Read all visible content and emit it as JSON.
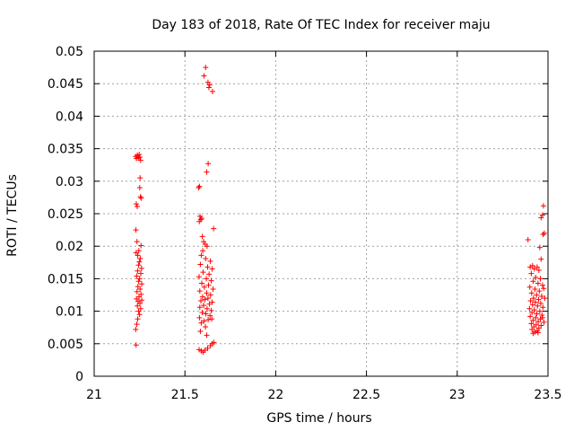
{
  "chart_data": {
    "type": "scatter",
    "title": "Day 183 of 2018, Rate Of TEC Index for receiver maju",
    "xlabel": "GPS time / hours",
    "ylabel": "ROTI / TECUs",
    "xlim": [
      21,
      23.5
    ],
    "ylim": [
      0,
      0.05
    ],
    "xticks": [
      {
        "value": 21,
        "label": "21"
      },
      {
        "value": 21.5,
        "label": "21.5"
      },
      {
        "value": 22,
        "label": "22"
      },
      {
        "value": 22.5,
        "label": "22.5"
      },
      {
        "value": 23,
        "label": "23"
      },
      {
        "value": 23.5,
        "label": "23.5"
      }
    ],
    "yticks": [
      {
        "value": 0,
        "label": "0"
      },
      {
        "value": 0.005,
        "label": "0.005"
      },
      {
        "value": 0.01,
        "label": "0.01"
      },
      {
        "value": 0.015,
        "label": "0.015"
      },
      {
        "value": 0.02,
        "label": "0.02"
      },
      {
        "value": 0.025,
        "label": "0.025"
      },
      {
        "value": 0.03,
        "label": "0.03"
      },
      {
        "value": 0.035,
        "label": "0.035"
      },
      {
        "value": 0.04,
        "label": "0.04"
      },
      {
        "value": 0.045,
        "label": "0.045"
      },
      {
        "value": 0.05,
        "label": "0.05"
      }
    ],
    "grid": true,
    "marker": "+",
    "series": [
      {
        "name": "ROTI",
        "color": "#ff0000",
        "points": [
          [
            21.228,
            0.0338
          ],
          [
            21.233,
            0.0335
          ],
          [
            21.238,
            0.034
          ],
          [
            21.243,
            0.0336
          ],
          [
            21.248,
            0.0341
          ],
          [
            21.252,
            0.0337
          ],
          [
            21.256,
            0.0332
          ],
          [
            21.253,
            0.0305
          ],
          [
            21.251,
            0.029
          ],
          [
            21.255,
            0.0276
          ],
          [
            21.259,
            0.0274
          ],
          [
            21.232,
            0.0265
          ],
          [
            21.237,
            0.0261
          ],
          [
            21.23,
            0.0225
          ],
          [
            21.236,
            0.0207
          ],
          [
            21.258,
            0.0201
          ],
          [
            21.246,
            0.0193
          ],
          [
            21.231,
            0.019
          ],
          [
            21.24,
            0.0186
          ],
          [
            21.254,
            0.0181
          ],
          [
            21.249,
            0.0176
          ],
          [
            21.244,
            0.0171
          ],
          [
            21.261,
            0.0166
          ],
          [
            21.239,
            0.0162
          ],
          [
            21.257,
            0.0158
          ],
          [
            21.234,
            0.0154
          ],
          [
            21.25,
            0.015
          ],
          [
            21.245,
            0.0146
          ],
          [
            21.262,
            0.0142
          ],
          [
            21.241,
            0.0138
          ],
          [
            21.253,
            0.0134
          ],
          [
            21.236,
            0.013
          ],
          [
            21.258,
            0.0126
          ],
          [
            21.247,
            0.0122
          ],
          [
            21.233,
            0.0119
          ],
          [
            21.262,
            0.0117
          ],
          [
            21.242,
            0.0115
          ],
          [
            21.252,
            0.0112
          ],
          [
            21.238,
            0.0108
          ],
          [
            21.256,
            0.0104
          ],
          [
            21.245,
            0.01
          ],
          [
            21.25,
            0.0095
          ],
          [
            21.24,
            0.0088
          ],
          [
            21.235,
            0.008
          ],
          [
            21.229,
            0.0072
          ],
          [
            21.231,
            0.0048
          ],
          [
            21.575,
            0.029
          ],
          [
            21.58,
            0.0292
          ],
          [
            21.583,
            0.0246
          ],
          [
            21.587,
            0.0241
          ],
          [
            21.592,
            0.0243
          ],
          [
            21.579,
            0.0238
          ],
          [
            21.596,
            0.0215
          ],
          [
            21.603,
            0.0207
          ],
          [
            21.612,
            0.0203
          ],
          [
            21.622,
            0.02
          ],
          [
            21.658,
            0.0227
          ],
          [
            21.598,
            0.0193
          ],
          [
            21.59,
            0.0186
          ],
          [
            21.614,
            0.0181
          ],
          [
            21.64,
            0.0177
          ],
          [
            21.585,
            0.0172
          ],
          [
            21.625,
            0.0168
          ],
          [
            21.65,
            0.0165
          ],
          [
            21.6,
            0.016
          ],
          [
            21.633,
            0.0157
          ],
          [
            21.578,
            0.0153
          ],
          [
            21.618,
            0.015
          ],
          [
            21.645,
            0.0147
          ],
          [
            21.593,
            0.0143
          ],
          [
            21.63,
            0.014
          ],
          [
            21.607,
            0.0137
          ],
          [
            21.655,
            0.0134
          ],
          [
            21.582,
            0.0131
          ],
          [
            21.62,
            0.0128
          ],
          [
            21.641,
            0.0125
          ],
          [
            21.597,
            0.0122
          ],
          [
            21.627,
            0.012
          ],
          [
            21.61,
            0.0118
          ],
          [
            21.588,
            0.0116
          ],
          [
            21.65,
            0.0114
          ],
          [
            21.635,
            0.0111
          ],
          [
            21.603,
            0.0109
          ],
          [
            21.582,
            0.0106
          ],
          [
            21.622,
            0.0104
          ],
          [
            21.645,
            0.0101
          ],
          [
            21.595,
            0.0098
          ],
          [
            21.615,
            0.0096
          ],
          [
            21.638,
            0.0093
          ],
          [
            21.58,
            0.009
          ],
          [
            21.628,
            0.0087
          ],
          [
            21.605,
            0.0085
          ],
          [
            21.59,
            0.0082
          ],
          [
            21.648,
            0.0088
          ],
          [
            21.613,
            0.0076
          ],
          [
            21.585,
            0.0069
          ],
          [
            21.62,
            0.0063
          ],
          [
            21.578,
            0.0041
          ],
          [
            21.59,
            0.0039
          ],
          [
            21.6,
            0.0037
          ],
          [
            21.61,
            0.004
          ],
          [
            21.625,
            0.0043
          ],
          [
            21.64,
            0.0047
          ],
          [
            21.65,
            0.005
          ],
          [
            21.659,
            0.0052
          ],
          [
            21.614,
            0.0475
          ],
          [
            21.605,
            0.0462
          ],
          [
            21.627,
            0.0452
          ],
          [
            21.636,
            0.0448
          ],
          [
            21.632,
            0.0444
          ],
          [
            21.652,
            0.0438
          ],
          [
            21.628,
            0.0327
          ],
          [
            21.62,
            0.0314
          ],
          [
            23.39,
            0.021
          ],
          [
            23.475,
            0.0262
          ],
          [
            23.47,
            0.0248
          ],
          [
            23.462,
            0.0244
          ],
          [
            23.48,
            0.022
          ],
          [
            23.473,
            0.0218
          ],
          [
            23.455,
            0.0198
          ],
          [
            23.462,
            0.018
          ],
          [
            23.402,
            0.0168
          ],
          [
            23.415,
            0.017
          ],
          [
            23.425,
            0.0165
          ],
          [
            23.44,
            0.0168
          ],
          [
            23.45,
            0.0163
          ],
          [
            23.408,
            0.0158
          ],
          [
            23.432,
            0.0152
          ],
          [
            23.458,
            0.015
          ],
          [
            23.418,
            0.0146
          ],
          [
            23.445,
            0.0143
          ],
          [
            23.47,
            0.014
          ],
          [
            23.4,
            0.0137
          ],
          [
            23.428,
            0.0134
          ],
          [
            23.452,
            0.0131
          ],
          [
            23.41,
            0.0128
          ],
          [
            23.437,
            0.0125
          ],
          [
            23.465,
            0.0123
          ],
          [
            23.42,
            0.012
          ],
          [
            23.448,
            0.0118
          ],
          [
            23.404,
            0.0116
          ],
          [
            23.43,
            0.0114
          ],
          [
            23.46,
            0.0112
          ],
          [
            23.415,
            0.011
          ],
          [
            23.442,
            0.0108
          ],
          [
            23.472,
            0.0106
          ],
          [
            23.398,
            0.0104
          ],
          [
            23.425,
            0.0102
          ],
          [
            23.455,
            0.01
          ],
          [
            23.412,
            0.0098
          ],
          [
            23.438,
            0.0096
          ],
          [
            23.467,
            0.0094
          ],
          [
            23.402,
            0.0092
          ],
          [
            23.432,
            0.009
          ],
          [
            23.458,
            0.0088
          ],
          [
            23.418,
            0.0086
          ],
          [
            23.446,
            0.0084
          ],
          [
            23.478,
            0.0083
          ],
          [
            23.408,
            0.0081
          ],
          [
            23.435,
            0.0079
          ],
          [
            23.462,
            0.0078
          ],
          [
            23.422,
            0.0076
          ],
          [
            23.45,
            0.0074
          ],
          [
            23.412,
            0.0072
          ],
          [
            23.44,
            0.007
          ],
          [
            23.428,
            0.0068
          ],
          [
            23.418,
            0.0066
          ],
          [
            23.445,
            0.0067
          ],
          [
            23.47,
            0.009
          ],
          [
            23.482,
            0.012
          ],
          [
            23.476,
            0.0135
          ]
        ]
      }
    ]
  }
}
